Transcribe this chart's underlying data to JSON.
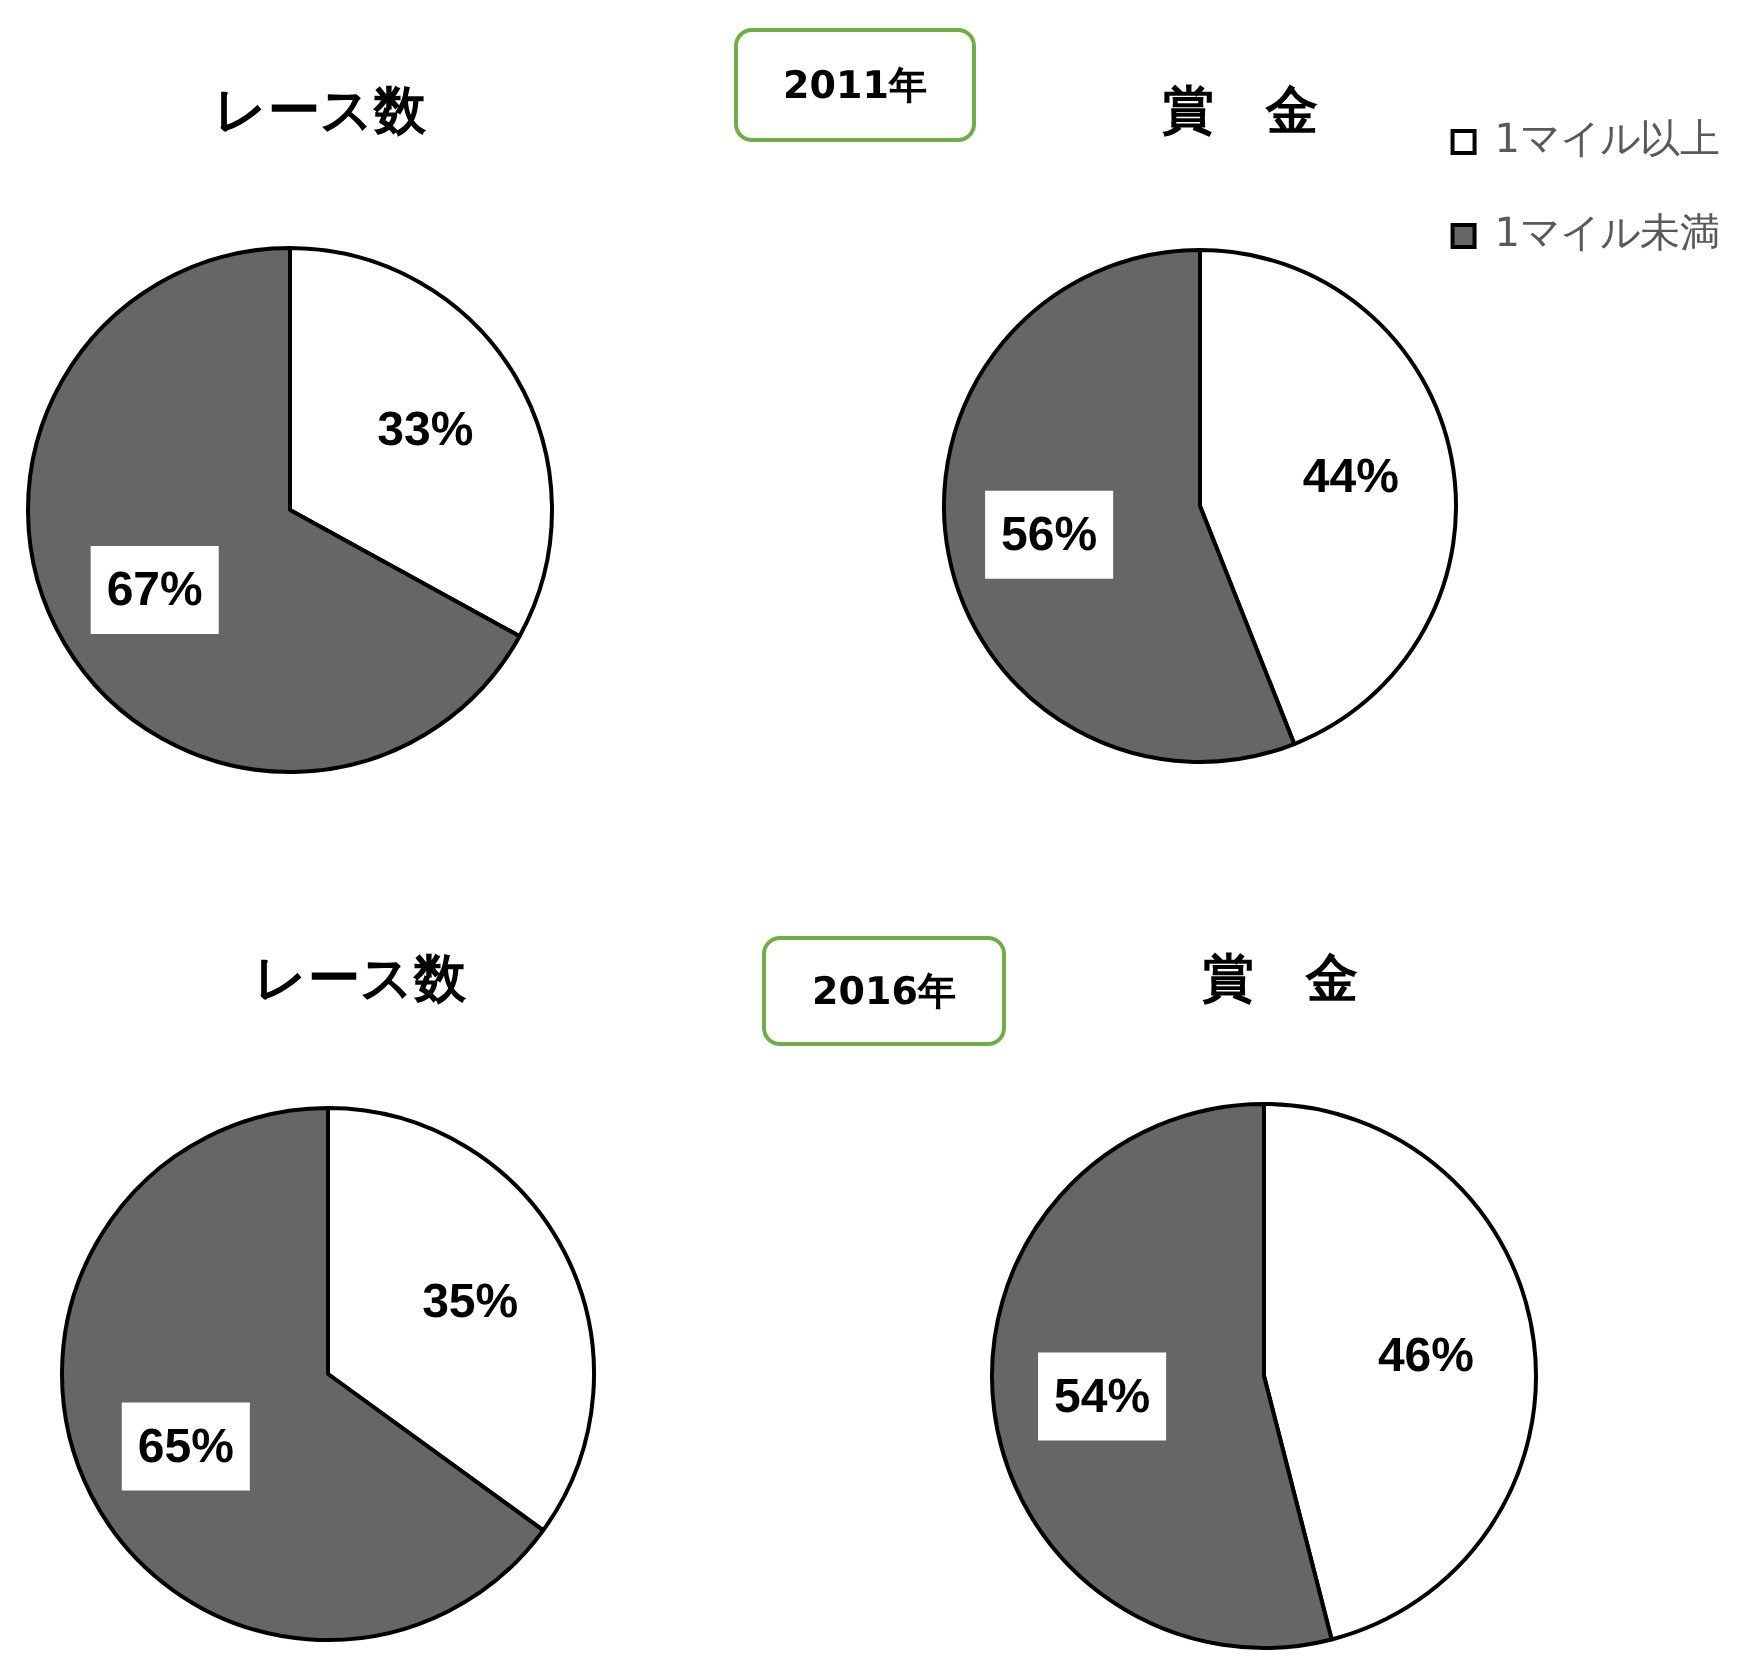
{
  "chart_data": [
    {
      "type": "pie",
      "title": "レース数",
      "categories": [
        null,
        null
      ],
      "values": [
        33,
        67
      ],
      "colors": [
        "#ffffff",
        "#666666"
      ],
      "value_labels": [
        "33%",
        "67%"
      ],
      "legend": false
    },
    {
      "type": "other",
      "title": "2011年"
    },
    {
      "type": "pie",
      "title": "賞　金",
      "categories": [
        "1マイル以上",
        "1マイル未満"
      ],
      "values": [
        44,
        56
      ],
      "colors": [
        "#ffffff",
        "#666666"
      ],
      "value_labels": [
        "44%",
        "56%"
      ],
      "legend": "top right"
    },
    {
      "type": "pie",
      "title": "レース数",
      "categories": [
        null,
        null
      ],
      "values": [
        35,
        65
      ],
      "colors": [
        "#ffffff",
        "#666666"
      ],
      "value_labels": [
        "35%",
        "65%"
      ],
      "legend": false
    },
    {
      "type": "other",
      "title": "2016年"
    },
    {
      "type": "pie",
      "title": "賞　金",
      "categories": [
        null,
        null
      ],
      "values": [
        46,
        54
      ],
      "colors": [
        "#ffffff",
        "#666666"
      ],
      "value_labels": [
        "46%",
        "54%"
      ],
      "legend": false
    }
  ]
}
